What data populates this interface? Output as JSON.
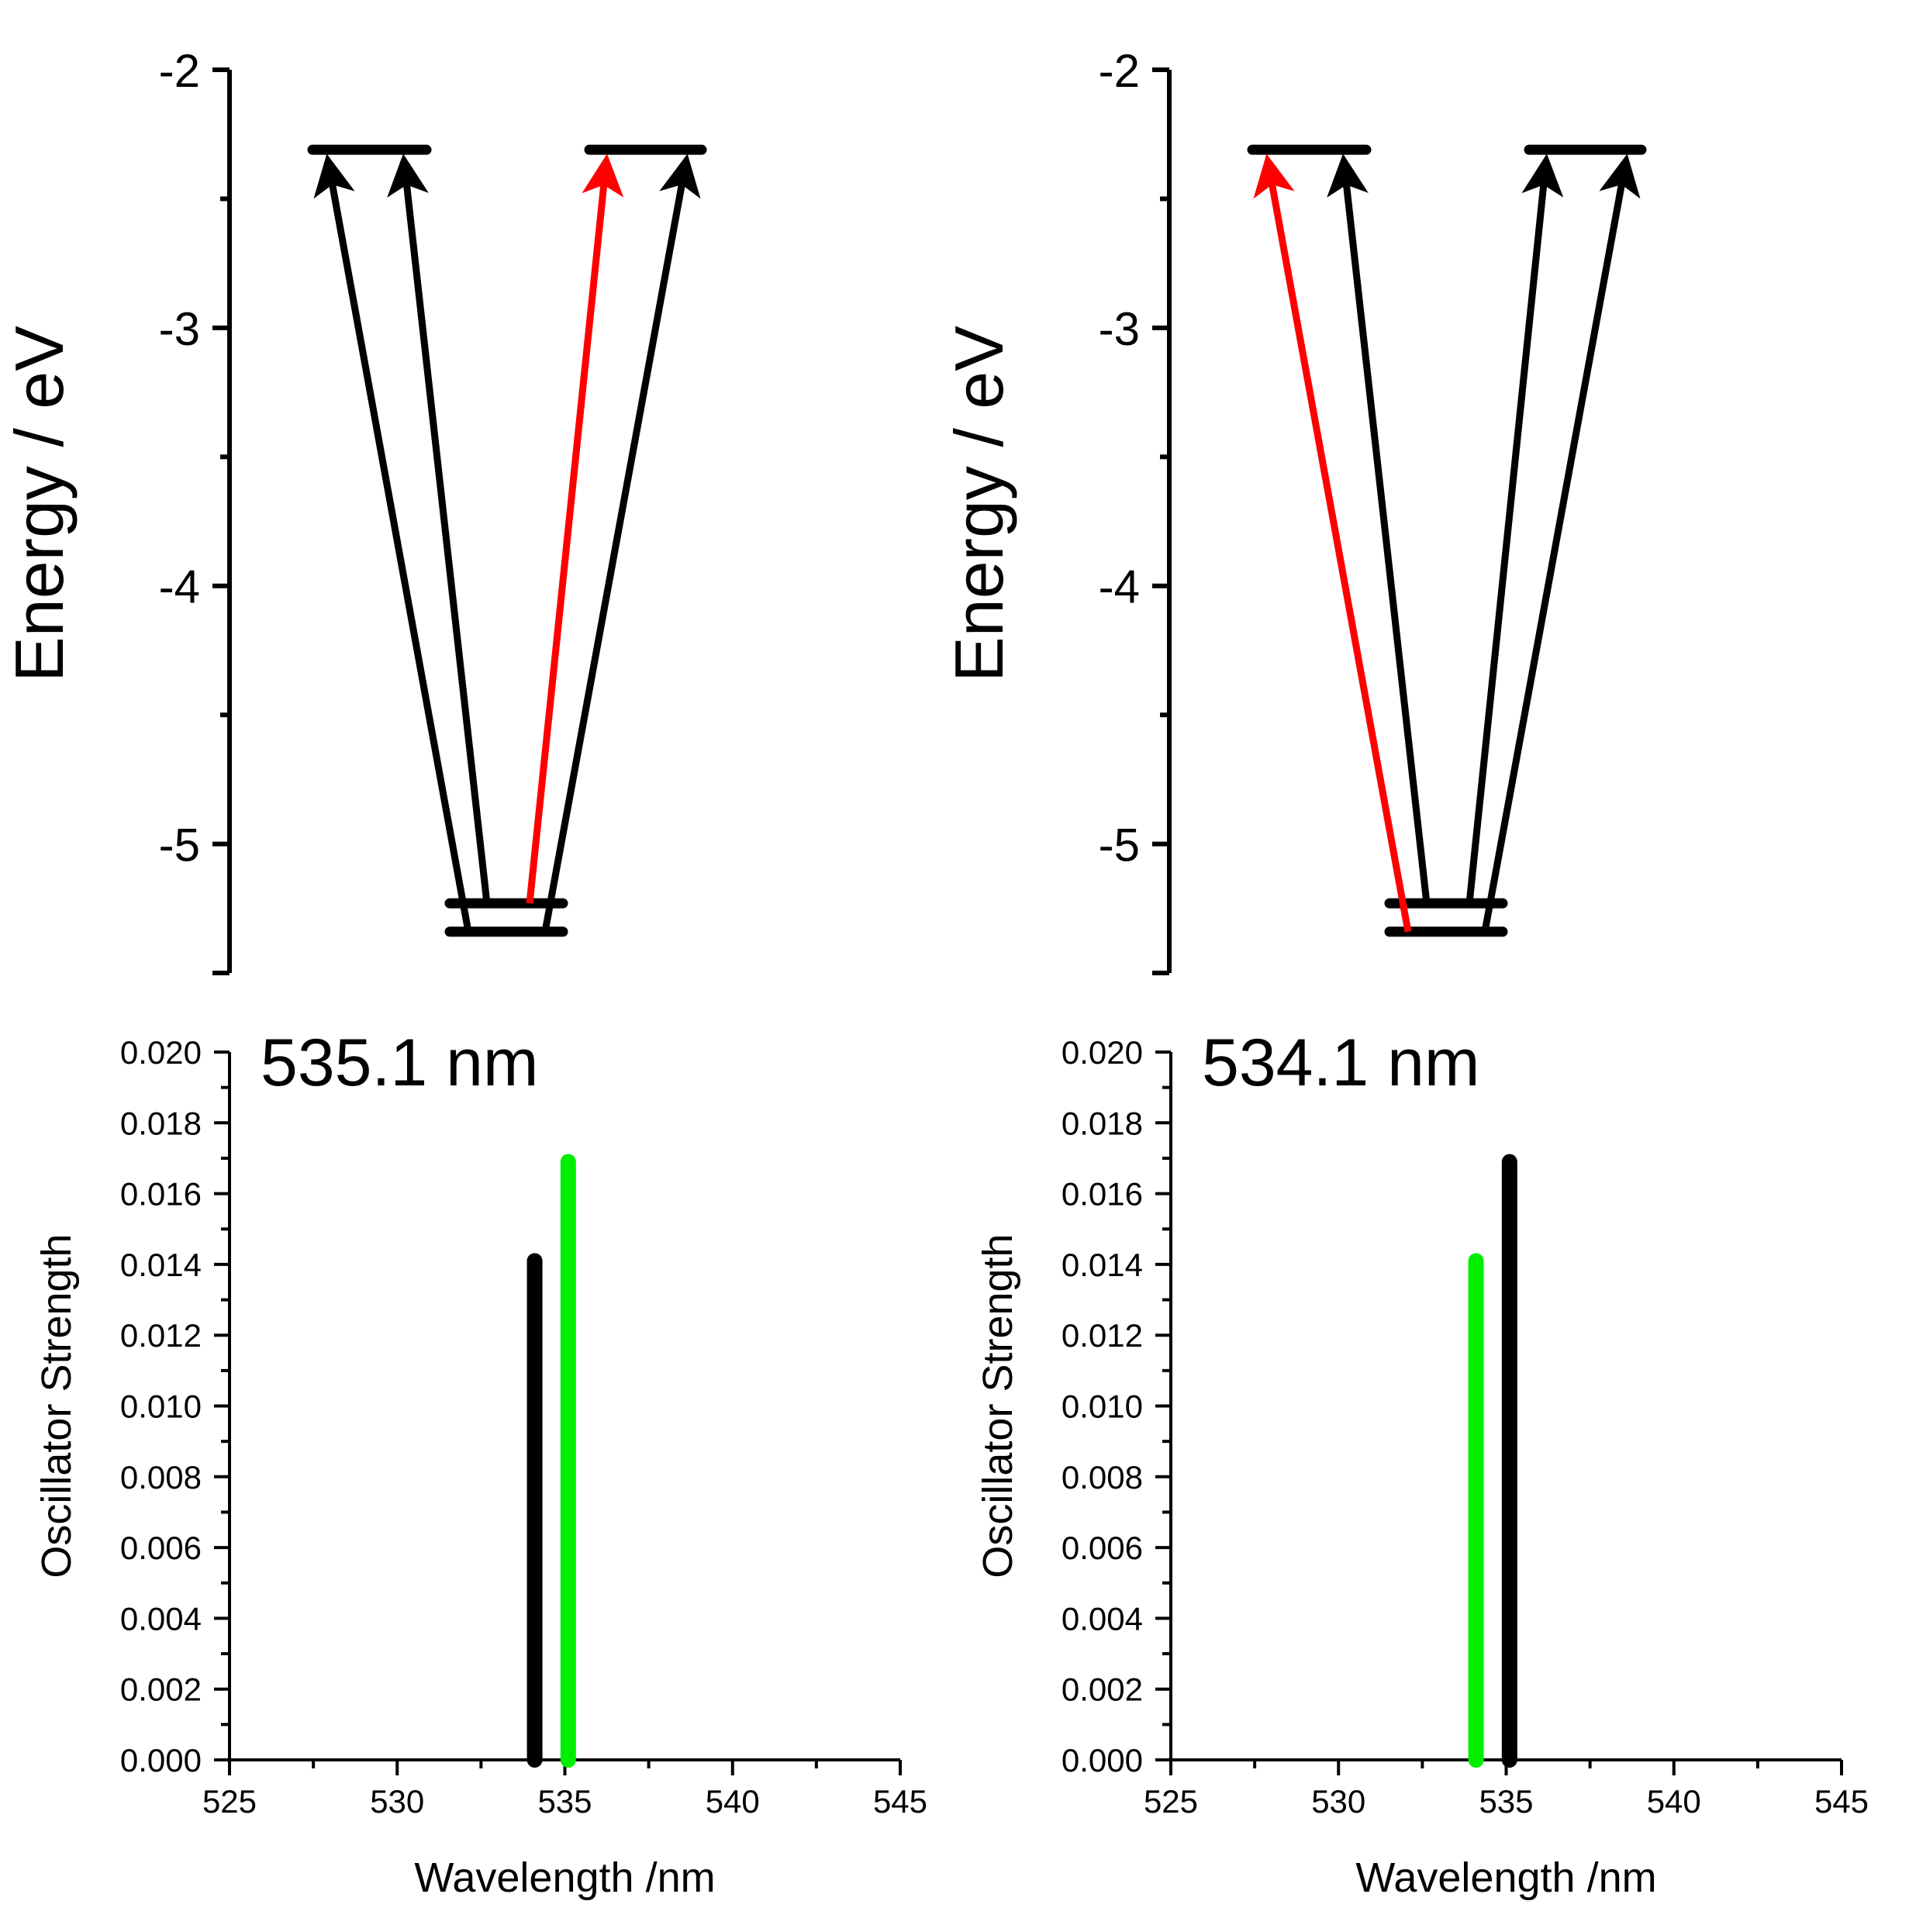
{
  "chart_data": [
    {
      "id": "energy-left",
      "type": "energy_level_diagram",
      "ylabel": "Energy / eV",
      "ylim": [
        -5.5,
        -2.0
      ],
      "yticks": [
        -2,
        -3,
        -4,
        -5
      ],
      "ytick_labels": [
        "-2",
        "-3",
        "-4",
        "-5"
      ],
      "levels": [
        {
          "name": "LUMO-left",
          "energy": -2.31
        },
        {
          "name": "LUMO-right",
          "energy": -2.31
        },
        {
          "name": "HOMO-1",
          "energy": -5.23
        },
        {
          "name": "HOMO-2",
          "energy": -5.34
        }
      ],
      "transitions": [
        {
          "from": "HOMO-2",
          "to": "LUMO-left",
          "color": "#000000"
        },
        {
          "from": "HOMO-1",
          "to": "LUMO-left",
          "color": "#000000"
        },
        {
          "from": "HOMO-1",
          "to": "LUMO-right",
          "color": "#ff0000"
        },
        {
          "from": "HOMO-2",
          "to": "LUMO-right",
          "color": "#000000"
        }
      ]
    },
    {
      "id": "energy-right",
      "type": "energy_level_diagram",
      "ylabel": "Energy / eV",
      "ylim": [
        -5.5,
        -2.0
      ],
      "yticks": [
        -2,
        -3,
        -4,
        -5
      ],
      "ytick_labels": [
        "-2",
        "-3",
        "-4",
        "-5"
      ],
      "levels": [
        {
          "name": "LUMO-left",
          "energy": -2.31
        },
        {
          "name": "LUMO-right",
          "energy": -2.31
        },
        {
          "name": "HOMO-1",
          "energy": -5.23
        },
        {
          "name": "HOMO-2",
          "energy": -5.34
        }
      ],
      "transitions": [
        {
          "from": "HOMO-2",
          "to": "LUMO-left",
          "color": "#ff0000"
        },
        {
          "from": "HOMO-1",
          "to": "LUMO-left",
          "color": "#000000"
        },
        {
          "from": "HOMO-1",
          "to": "LUMO-right",
          "color": "#000000"
        },
        {
          "from": "HOMO-2",
          "to": "LUMO-right",
          "color": "#000000"
        }
      ]
    },
    {
      "id": "spectrum-left",
      "type": "bar",
      "annotation": "535.1 nm",
      "xlabel": "Wavelength /nm",
      "ylabel": "Oscillator Strength",
      "xlim": [
        525,
        545
      ],
      "ylim": [
        0,
        0.02
      ],
      "xticks": [
        525,
        530,
        535,
        540,
        545
      ],
      "yticks": [
        0.0,
        0.002,
        0.004,
        0.006,
        0.008,
        0.01,
        0.012,
        0.014,
        0.016,
        0.018,
        0.02
      ],
      "ytick_labels": [
        "0.000",
        "0.002",
        "0.004",
        "0.006",
        "0.008",
        "0.010",
        "0.012",
        "0.014",
        "0.016",
        "0.018",
        "0.020"
      ],
      "series": [
        {
          "name": "black",
          "color": "#000000",
          "x": 534.1,
          "value": 0.0141
        },
        {
          "name": "green",
          "color": "#00ee00",
          "x": 535.1,
          "value": 0.0169
        }
      ]
    },
    {
      "id": "spectrum-right",
      "type": "bar",
      "annotation": "534.1 nm",
      "xlabel": "Wavelength /nm",
      "ylabel": "Oscillator Strength",
      "xlim": [
        525,
        545
      ],
      "ylim": [
        0,
        0.02
      ],
      "xticks": [
        525,
        530,
        535,
        540,
        545
      ],
      "yticks": [
        0.0,
        0.002,
        0.004,
        0.006,
        0.008,
        0.01,
        0.012,
        0.014,
        0.016,
        0.018,
        0.02
      ],
      "ytick_labels": [
        "0.000",
        "0.002",
        "0.004",
        "0.006",
        "0.008",
        "0.010",
        "0.012",
        "0.014",
        "0.016",
        "0.018",
        "0.020"
      ],
      "series": [
        {
          "name": "green",
          "color": "#00ee00",
          "x": 534.1,
          "value": 0.0141
        },
        {
          "name": "black",
          "color": "#000000",
          "x": 535.1,
          "value": 0.0169
        }
      ]
    }
  ]
}
